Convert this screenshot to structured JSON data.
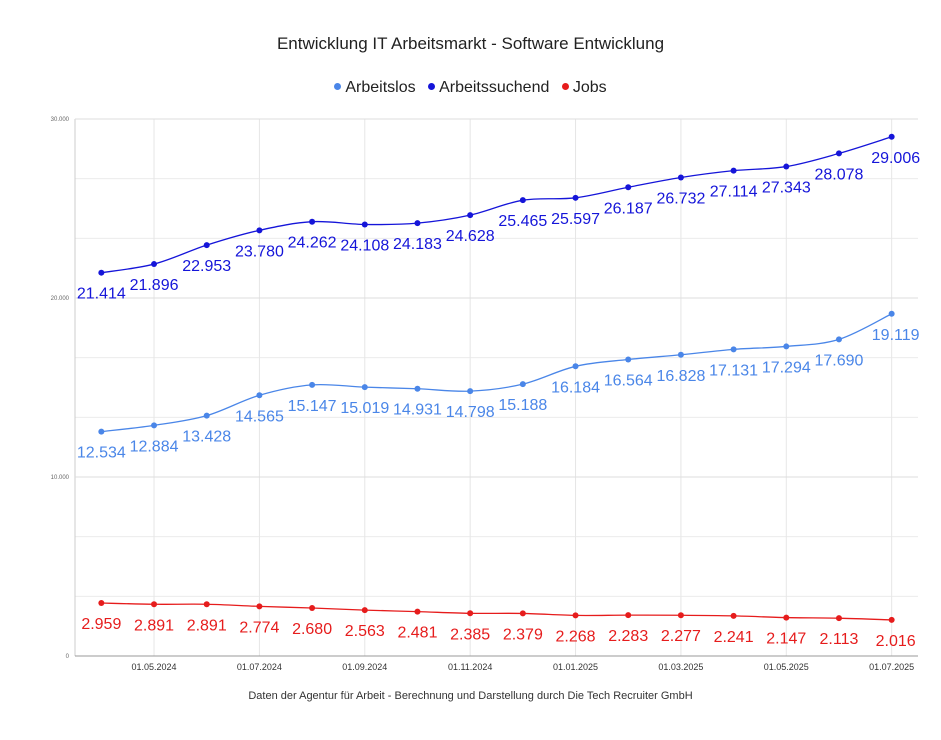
{
  "chart_data": {
    "type": "line",
    "title": "Entwicklung IT Arbeitsmarkt  - Software Entwicklung",
    "source": "Daten der Agentur für Arbeit - Berechnung und Darstellung durch Die Tech Recruiter GmbH",
    "legend_position": "top",
    "grid": true,
    "ylim": [
      0,
      30000
    ],
    "y_ticks": [
      {
        "value": 0,
        "label": "0"
      },
      {
        "value": 10000,
        "label": "10.000"
      },
      {
        "value": 20000,
        "label": "20.000"
      },
      {
        "value": 30000,
        "label": "30.000"
      }
    ],
    "x_tick_labels": [
      "01.05.2024",
      "01.07.2024",
      "01.09.2024",
      "01.11.2024",
      "01.01.2025",
      "01.03.2025",
      "01.05.2025",
      "01.07.2025"
    ],
    "x_tick_indices": [
      1,
      3,
      5,
      7,
      9,
      11,
      13,
      15
    ],
    "categories": [
      "01.04.2024",
      "01.05.2024",
      "01.06.2024",
      "01.07.2024",
      "01.08.2024",
      "01.09.2024",
      "01.10.2024",
      "01.11.2024",
      "01.12.2024",
      "01.01.2025",
      "01.02.2025",
      "01.03.2025",
      "01.04.2025",
      "01.05.2025",
      "01.06.2025",
      "01.07.2025"
    ],
    "series": [
      {
        "name": "Arbeitslos",
        "color": "#4a86e8",
        "values": [
          12534,
          12884,
          13428,
          14565,
          15147,
          15019,
          14931,
          14798,
          15188,
          16184,
          16564,
          16828,
          17131,
          17294,
          17690,
          19119
        ],
        "labels": [
          "12.534",
          "12.884",
          "13.428",
          "14.565",
          "15.147",
          "15.019",
          "14.931",
          "14.798",
          "15.188",
          "16.184",
          "16.564",
          "16.828",
          "17.131",
          "17.294",
          "17.690",
          "19.119"
        ]
      },
      {
        "name": "Arbeitssuchend",
        "color": "#1515d9",
        "values": [
          21414,
          21896,
          22953,
          23780,
          24262,
          24108,
          24183,
          24628,
          25465,
          25597,
          26187,
          26732,
          27114,
          27343,
          28078,
          29006
        ],
        "labels": [
          "21.414",
          "21.896",
          "22.953",
          "23.780",
          "24.262",
          "24.108",
          "24.183",
          "24.628",
          "25.465",
          "25.597",
          "26.187",
          "26.732",
          "27.114",
          "27.343",
          "28.078",
          "29.006"
        ]
      },
      {
        "name": "Jobs",
        "color": "#e61c1c",
        "values": [
          2959,
          2891,
          2891,
          2774,
          2680,
          2563,
          2481,
          2385,
          2379,
          2268,
          2283,
          2277,
          2241,
          2147,
          2113,
          2016
        ],
        "labels": [
          "2.959",
          "2.891",
          "2.891",
          "2.774",
          "2.680",
          "2.563",
          "2.481",
          "2.385",
          "2.379",
          "2.268",
          "2.283",
          "2.277",
          "2.241",
          "2.147",
          "2.113",
          "2.016"
        ]
      }
    ]
  }
}
